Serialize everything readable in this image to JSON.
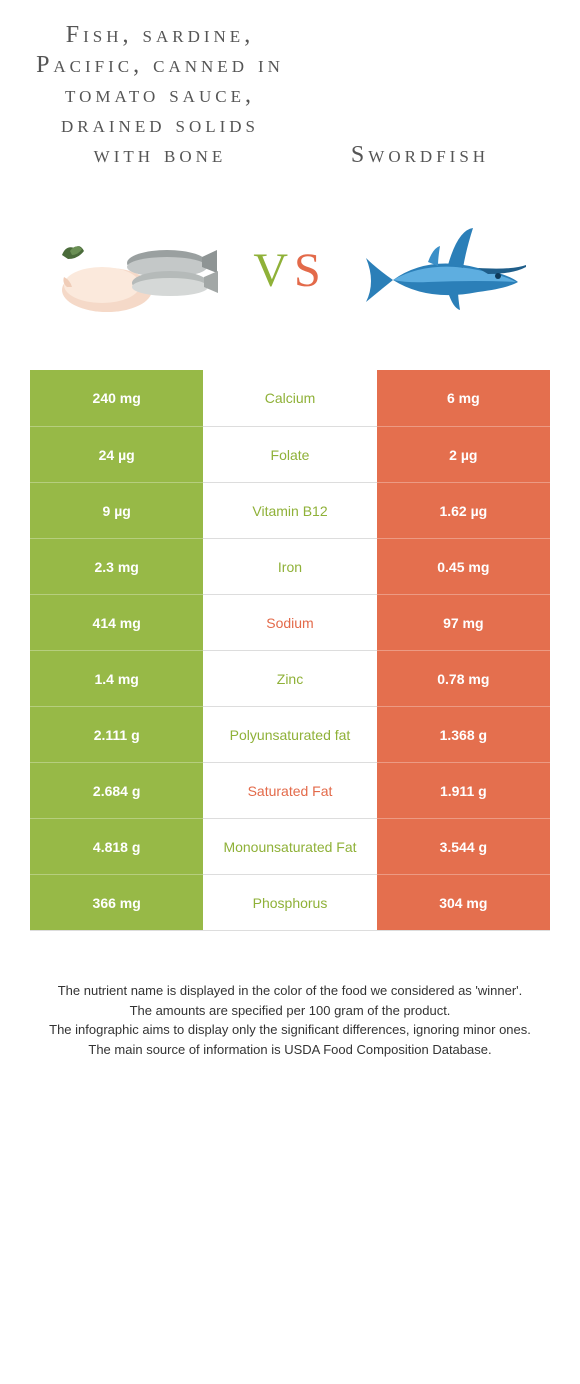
{
  "titles": {
    "left": "Fish, sardine, Pacific, canned in tomato sauce, drained solids with bone",
    "right": "Swordfish"
  },
  "vs": {
    "v": "V",
    "s": "S"
  },
  "colors": {
    "left_bg": "#97b947",
    "right_bg": "#e46f4e",
    "left_text": "#8fb138",
    "right_text": "#e36a4a"
  },
  "rows": [
    {
      "left": "240 mg",
      "label": "Calcium",
      "right": "6 mg",
      "winner": "left"
    },
    {
      "left": "24 µg",
      "label": "Folate",
      "right": "2 µg",
      "winner": "left"
    },
    {
      "left": "9 µg",
      "label": "Vitamin B12",
      "right": "1.62 µg",
      "winner": "left"
    },
    {
      "left": "2.3 mg",
      "label": "Iron",
      "right": "0.45 mg",
      "winner": "left"
    },
    {
      "left": "414 mg",
      "label": "Sodium",
      "right": "97 mg",
      "winner": "right"
    },
    {
      "left": "1.4 mg",
      "label": "Zinc",
      "right": "0.78 mg",
      "winner": "left"
    },
    {
      "left": "2.111 g",
      "label": "Polyunsaturated fat",
      "right": "1.368 g",
      "winner": "left"
    },
    {
      "left": "2.684 g",
      "label": "Saturated Fat",
      "right": "1.911 g",
      "winner": "right"
    },
    {
      "left": "4.818 g",
      "label": "Monounsaturated Fat",
      "right": "3.544 g",
      "winner": "left"
    },
    {
      "left": "366 mg",
      "label": "Phosphorus",
      "right": "304 mg",
      "winner": "left"
    }
  ],
  "footer": [
    "The nutrient name is displayed in the color of the food we considered as 'winner'.",
    "The amounts are specified per 100 gram of the product.",
    "The infographic aims to display only the significant differences, ignoring minor ones.",
    "The main source of information is USDA Food Composition Database."
  ]
}
